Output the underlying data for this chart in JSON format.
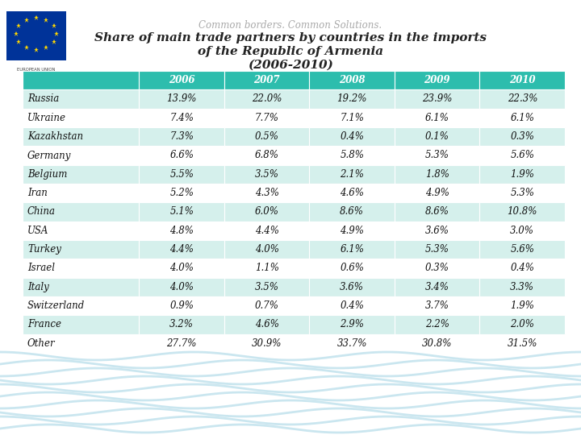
{
  "title_line1": "Common borders. Common Solutions.",
  "title_line2": "Share of main trade partners by countries in the imports",
  "title_line3": "of the Republic of Armenia",
  "title_line4": "(2006-2010)",
  "columns": [
    "",
    "2006",
    "2007",
    "2008",
    "2009",
    "2010"
  ],
  "rows": [
    [
      "Russia",
      "13.9%",
      "22.0%",
      "19.2%",
      "23.9%",
      "22.3%"
    ],
    [
      "Ukraine",
      "7.4%",
      "7.7%",
      "7.1%",
      "6.1%",
      "6.1%"
    ],
    [
      "Kazakhstan",
      "7.3%",
      "0.5%",
      "0.4%",
      "0.1%",
      "0.3%"
    ],
    [
      "Germany",
      "6.6%",
      "6.8%",
      "5.8%",
      "5.3%",
      "5.6%"
    ],
    [
      "Belgium",
      "5.5%",
      "3.5%",
      "2.1%",
      "1.8%",
      "1.9%"
    ],
    [
      "Iran",
      "5.2%",
      "4.3%",
      "4.6%",
      "4.9%",
      "5.3%"
    ],
    [
      "China",
      "5.1%",
      "6.0%",
      "8.6%",
      "8.6%",
      "10.8%"
    ],
    [
      "USA",
      "4.8%",
      "4.4%",
      "4.9%",
      "3.6%",
      "3.0%"
    ],
    [
      "Turkey",
      "4.4%",
      "4.0%",
      "6.1%",
      "5.3%",
      "5.6%"
    ],
    [
      "Israel",
      "4.0%",
      "1.1%",
      "0.6%",
      "0.3%",
      "0.4%"
    ],
    [
      "Italy",
      "4.0%",
      "3.5%",
      "3.6%",
      "3.4%",
      "3.3%"
    ],
    [
      "Switzerland",
      "0.9%",
      "0.7%",
      "0.4%",
      "3.7%",
      "1.9%"
    ],
    [
      "France",
      "3.2%",
      "4.6%",
      "2.9%",
      "2.2%",
      "2.0%"
    ],
    [
      "Other",
      "27.7%",
      "30.9%",
      "33.7%",
      "30.8%",
      "31.5%"
    ]
  ],
  "header_bg": "#2DBDAD",
  "header_text": "#FFFFFF",
  "row_bg_odd": "#D5F0EC",
  "row_bg_even": "#FFFFFF",
  "country_text_color": "#111111",
  "value_text_color": "#111111",
  "title_subtitle_color": "#AAAAAA",
  "title_main_color": "#222222",
  "bg_color": "#FFFFFF",
  "wave_color": "#BDE0EC"
}
